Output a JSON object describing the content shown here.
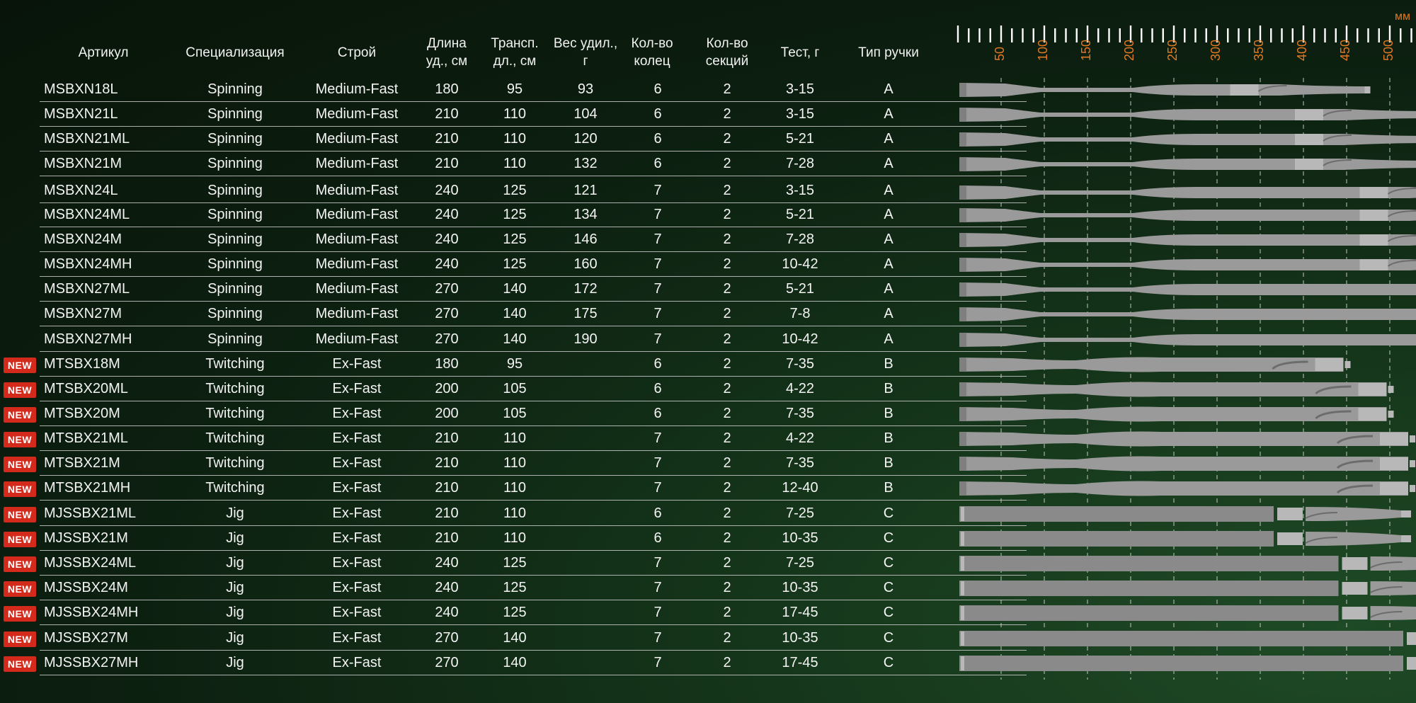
{
  "headers": {
    "article": "Артикул",
    "spec": "Специализация",
    "action": "Строй",
    "length": "Длина\nуд., см",
    "transport": "Трансп.\nдл., см",
    "weight": "Вес удил.,\nг",
    "rings": "Кол-во\nколец",
    "sections": "Кол-во\nсекций",
    "test": "Тест, г",
    "handle": "Тип ручки"
  },
  "badge_label": "NEW",
  "ruler": {
    "unit": "мм",
    "labels": [
      "50",
      "100",
      "150",
      "200",
      "250",
      "300",
      "350",
      "400",
      "450",
      "500"
    ],
    "label_color": "#e07a23"
  },
  "rows": [
    {
      "article": "MSBXN18L",
      "spec": "Spinning",
      "action": "Medium-Fast",
      "length": "180",
      "transport": "95",
      "weight": "93",
      "rings": "6",
      "sections": "2",
      "test": "3-15",
      "handle": "A",
      "new": false
    },
    {
      "article": "MSBXN21L",
      "spec": "Spinning",
      "action": "Medium-Fast",
      "length": "210",
      "transport": "110",
      "weight": "104",
      "rings": "6",
      "sections": "2",
      "test": "3-15",
      "handle": "A",
      "new": false
    },
    {
      "article": "MSBXN21ML",
      "spec": "Spinning",
      "action": "Medium-Fast",
      "length": "210",
      "transport": "110",
      "weight": "120",
      "rings": "6",
      "sections": "2",
      "test": "5-21",
      "handle": "A",
      "new": false
    },
    {
      "article": "MSBXN21M",
      "spec": "Spinning",
      "action": "Medium-Fast",
      "length": "210",
      "transport": "110",
      "weight": "132",
      "rings": "6",
      "sections": "2",
      "test": "7-28",
      "handle": "A",
      "new": false
    },
    {
      "article": "MSBXN24L",
      "spec": "Spinning",
      "action": "Medium-Fast",
      "length": "240",
      "transport": "125",
      "weight": "121",
      "rings": "7",
      "sections": "2",
      "test": "3-15",
      "handle": "A",
      "new": false
    },
    {
      "article": "MSBXN24ML",
      "spec": "Spinning",
      "action": "Medium-Fast",
      "length": "240",
      "transport": "125",
      "weight": "134",
      "rings": "7",
      "sections": "2",
      "test": "5-21",
      "handle": "A",
      "new": false
    },
    {
      "article": "MSBXN24M",
      "spec": "Spinning",
      "action": "Medium-Fast",
      "length": "240",
      "transport": "125",
      "weight": "146",
      "rings": "7",
      "sections": "2",
      "test": "7-28",
      "handle": "A",
      "new": false
    },
    {
      "article": "MSBXN24MH",
      "spec": "Spinning",
      "action": "Medium-Fast",
      "length": "240",
      "transport": "125",
      "weight": "160",
      "rings": "7",
      "sections": "2",
      "test": "10-42",
      "handle": "A",
      "new": false
    },
    {
      "article": "MSBXN27ML",
      "spec": "Spinning",
      "action": "Medium-Fast",
      "length": "270",
      "transport": "140",
      "weight": "172",
      "rings": "7",
      "sections": "2",
      "test": "5-21",
      "handle": "A",
      "new": false
    },
    {
      "article": "MSBXN27M",
      "spec": "Spinning",
      "action": "Medium-Fast",
      "length": "270",
      "transport": "140",
      "weight": "175",
      "rings": "7",
      "sections": "2",
      "test": "7-8",
      "handle": "A",
      "new": false
    },
    {
      "article": "MSBXN27MH",
      "spec": "Spinning",
      "action": "Medium-Fast",
      "length": "270",
      "transport": "140",
      "weight": "190",
      "rings": "7",
      "sections": "2",
      "test": "10-42",
      "handle": "A",
      "new": false
    },
    {
      "article": "MTSBX18M",
      "spec": "Twitching",
      "action": "Ex-Fast",
      "length": "180",
      "transport": "95",
      "weight": "",
      "rings": "6",
      "sections": "2",
      "test": "7-35",
      "handle": "B",
      "new": true
    },
    {
      "article": "MTSBX20ML",
      "spec": "Twitching",
      "action": "Ex-Fast",
      "length": "200",
      "transport": "105",
      "weight": "",
      "rings": "6",
      "sections": "2",
      "test": "4-22",
      "handle": "B",
      "new": true
    },
    {
      "article": "MTSBX20M",
      "spec": "Twitching",
      "action": "Ex-Fast",
      "length": "200",
      "transport": "105",
      "weight": "",
      "rings": "6",
      "sections": "2",
      "test": "7-35",
      "handle": "B",
      "new": true
    },
    {
      "article": "MTSBX21ML",
      "spec": "Twitching",
      "action": "Ex-Fast",
      "length": "210",
      "transport": "110",
      "weight": "",
      "rings": "7",
      "sections": "2",
      "test": "4-22",
      "handle": "B",
      "new": true
    },
    {
      "article": "MTSBX21M",
      "spec": "Twitching",
      "action": "Ex-Fast",
      "length": "210",
      "transport": "110",
      "weight": "",
      "rings": "7",
      "sections": "2",
      "test": "7-35",
      "handle": "B",
      "new": true
    },
    {
      "article": "MTSBX21MH",
      "spec": "Twitching",
      "action": "Ex-Fast",
      "length": "210",
      "transport": "110",
      "weight": "",
      "rings": "7",
      "sections": "2",
      "test": "12-40",
      "handle": "B",
      "new": true
    },
    {
      "article": "MJSSBX21ML",
      "spec": "Jig",
      "action": "Ex-Fast",
      "length": "210",
      "transport": "110",
      "weight": "",
      "rings": "6",
      "sections": "2",
      "test": "7-25",
      "handle": "C",
      "new": true
    },
    {
      "article": "MJSSBX21M",
      "spec": "Jig",
      "action": "Ex-Fast",
      "length": "210",
      "transport": "110",
      "weight": "",
      "rings": "6",
      "sections": "2",
      "test": "10-35",
      "handle": "C",
      "new": true
    },
    {
      "article": "MJSSBX24ML",
      "spec": "Jig",
      "action": "Ex-Fast",
      "length": "240",
      "transport": "125",
      "weight": "",
      "rings": "7",
      "sections": "2",
      "test": "7-25",
      "handle": "C",
      "new": true
    },
    {
      "article": "MJSSBX24M",
      "spec": "Jig",
      "action": "Ex-Fast",
      "length": "240",
      "transport": "125",
      "weight": "",
      "rings": "7",
      "sections": "2",
      "test": "10-35",
      "handle": "C",
      "new": true
    },
    {
      "article": "MJSSBX24MH",
      "spec": "Jig",
      "action": "Ex-Fast",
      "length": "240",
      "transport": "125",
      "weight": "",
      "rings": "7",
      "sections": "2",
      "test": "17-45",
      "handle": "C",
      "new": true
    },
    {
      "article": "MJSSBX27M",
      "spec": "Jig",
      "action": "Ex-Fast",
      "length": "270",
      "transport": "140",
      "weight": "",
      "rings": "7",
      "sections": "2",
      "test": "10-35",
      "handle": "C",
      "new": true
    },
    {
      "article": "MJSSBX27MH",
      "spec": "Jig",
      "action": "Ex-Fast",
      "length": "270",
      "transport": "140",
      "weight": "",
      "rings": "7",
      "sections": "2",
      "test": "17-45",
      "handle": "C",
      "new": true
    }
  ]
}
